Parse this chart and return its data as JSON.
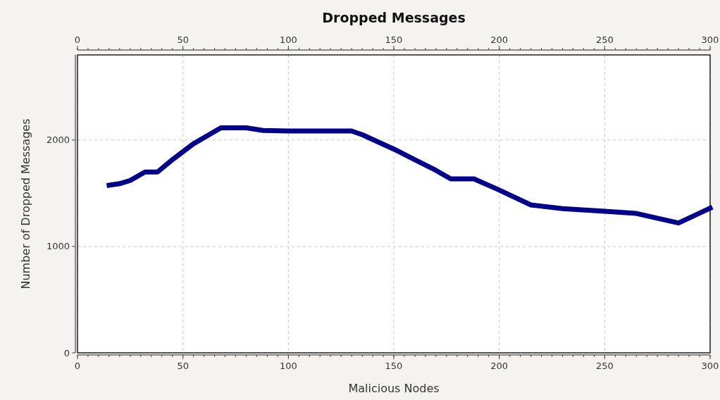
{
  "chart_data": {
    "type": "line",
    "title": "Dropped Messages",
    "xlabel": "Malicious Nodes",
    "ylabel": "Number of Dropped Messages",
    "x": [
      15,
      20,
      25,
      32,
      38,
      45,
      55,
      62,
      68,
      80,
      88,
      100,
      130,
      135,
      150,
      160,
      170,
      177,
      188,
      200,
      215,
      230,
      250,
      265,
      285,
      300
    ],
    "series": [
      {
        "color": "#00008b",
        "values": [
          1575,
          1590,
          1620,
          1700,
          1700,
          1815,
          1965,
          2045,
          2115,
          2115,
          2090,
          2085,
          2085,
          2050,
          1915,
          1815,
          1715,
          1635,
          1635,
          1530,
          1390,
          1355,
          1330,
          1310,
          1220,
          1360
        ]
      }
    ],
    "xlim": [
      0,
      300
    ],
    "xticks": [
      0,
      50,
      100,
      150,
      200,
      250,
      300
    ],
    "x2lim": [
      0,
      300
    ],
    "x2ticks": [
      0,
      50,
      100,
      150,
      200,
      250,
      300
    ],
    "ylim": [
      0,
      2800
    ],
    "yticks": [
      0,
      1000,
      2000
    ],
    "grid": true,
    "marker": "none",
    "line_style": "solid"
  }
}
